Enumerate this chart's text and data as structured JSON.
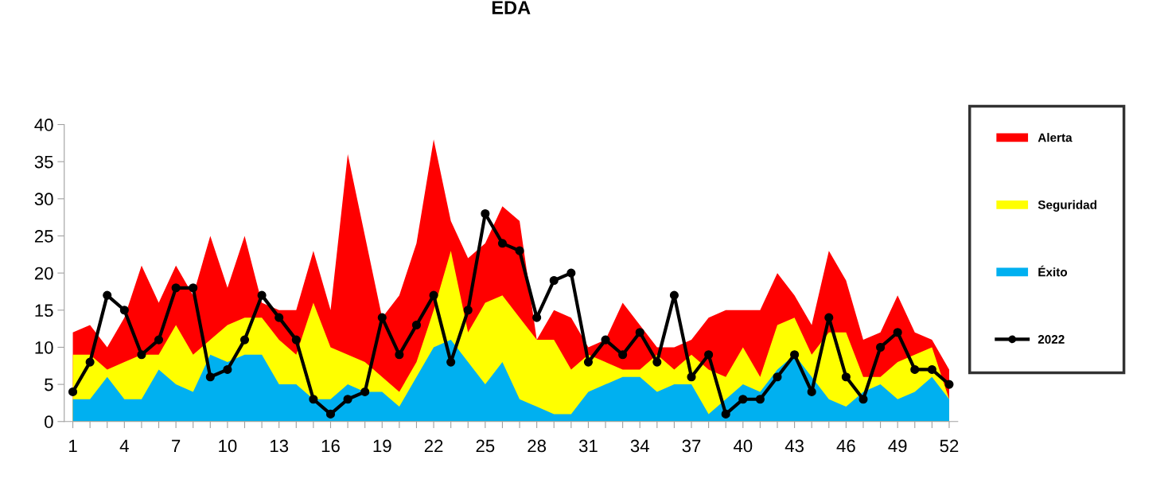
{
  "chart_data": {
    "type": "area",
    "title": "EDA",
    "categories": [
      "1",
      null,
      null,
      "4",
      null,
      null,
      "7",
      null,
      null,
      "10",
      null,
      null,
      "13",
      null,
      null,
      "16",
      null,
      null,
      "19",
      null,
      null,
      "22",
      null,
      null,
      "25",
      null,
      null,
      "28",
      null,
      null,
      "31",
      null,
      null,
      "34",
      null,
      null,
      "37",
      null,
      null,
      "40",
      null,
      null,
      "43",
      null,
      null,
      "46",
      null,
      null,
      "49",
      null,
      null,
      "52"
    ],
    "series": [
      {
        "name": "Alerta",
        "color": "#ff0000",
        "values": [
          12,
          13,
          10,
          14,
          21,
          16,
          21,
          17,
          25,
          18,
          25,
          16,
          15,
          15,
          23,
          15,
          36,
          25,
          14,
          17,
          24,
          38,
          27,
          22,
          24,
          29,
          27,
          11,
          15,
          14,
          10,
          11,
          16,
          13,
          10,
          10,
          11,
          14,
          15,
          15,
          15,
          20,
          17,
          13,
          23,
          19,
          11,
          12,
          17,
          12,
          11,
          7
        ]
      },
      {
        "name": "Seguridad",
        "color": "#ffff00",
        "values": [
          9,
          9,
          7,
          8,
          9,
          9,
          13,
          9,
          11,
          13,
          14,
          14,
          11,
          9,
          16,
          10,
          9,
          8,
          6,
          4,
          8,
          15,
          23,
          12,
          16,
          17,
          14,
          11,
          11,
          7,
          9,
          8,
          7,
          7,
          9,
          7,
          9,
          7,
          6,
          10,
          6,
          13,
          14,
          9,
          12,
          12,
          6,
          6,
          8,
          9,
          10,
          3
        ]
      },
      {
        "name": "Éxito",
        "color": "#00b0f0",
        "values": [
          3,
          3,
          6,
          3,
          3,
          7,
          5,
          4,
          9,
          8,
          9,
          9,
          5,
          5,
          3,
          3,
          5,
          4,
          4,
          2,
          6,
          10,
          11,
          8,
          5,
          8,
          3,
          2,
          1,
          1,
          4,
          5,
          6,
          6,
          4,
          5,
          5,
          1,
          3,
          5,
          4,
          7,
          9,
          6,
          3,
          2,
          4,
          5,
          3,
          4,
          6,
          3
        ]
      },
      {
        "name": "2022",
        "color": "#000000",
        "type": "line",
        "marker": "circle",
        "values": [
          4,
          8,
          17,
          15,
          9,
          11,
          18,
          18,
          6,
          7,
          11,
          17,
          14,
          11,
          3,
          1,
          3,
          4,
          14,
          9,
          13,
          17,
          8,
          15,
          28,
          24,
          23,
          14,
          19,
          20,
          8,
          11,
          9,
          12,
          8,
          17,
          6,
          9,
          1,
          3,
          3,
          6,
          9,
          4,
          14,
          6,
          3,
          10,
          12,
          7,
          7,
          5
        ]
      }
    ],
    "ylim": [
      0,
      40
    ],
    "yticks": [
      0,
      5,
      10,
      15,
      20,
      25,
      30,
      35,
      40
    ],
    "grid": false,
    "legend": "right"
  }
}
